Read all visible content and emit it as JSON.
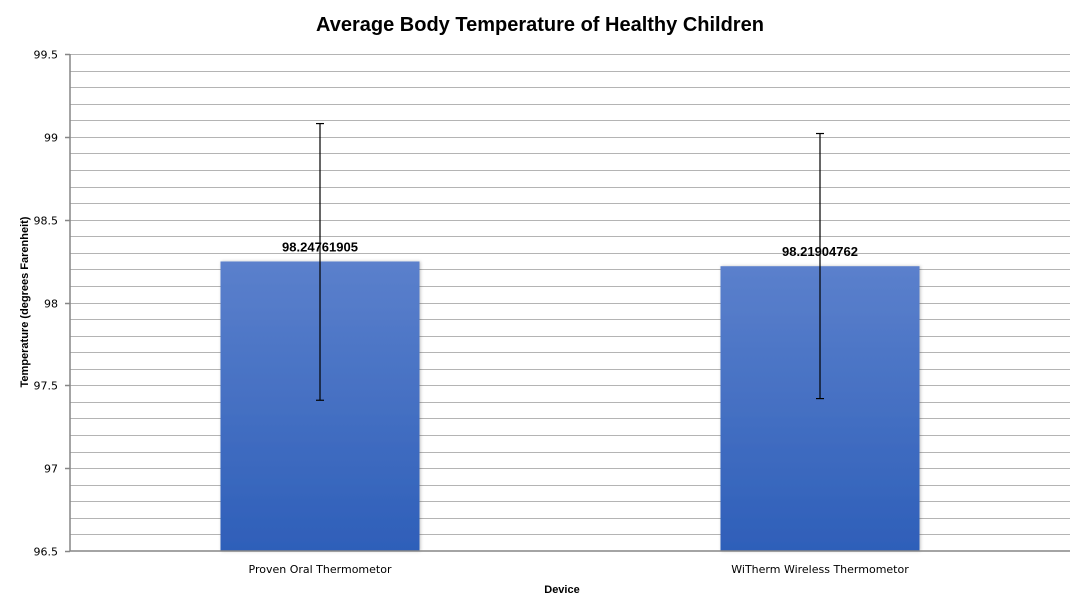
{
  "chart_data": {
    "type": "bar",
    "title": "Average Body Temperature of Healthy Children",
    "xlabel": "Device",
    "ylabel": "Temperature (degrees Farenheit)",
    "categories": [
      "Proven Oral Thermometor",
      "WiTherm Wireless Thermometor"
    ],
    "values": [
      98.24761905,
      98.21904762
    ],
    "data_labels": [
      "98.24761905",
      "98.21904762"
    ],
    "error_bars": [
      {
        "upper": 99.08,
        "lower": 97.41
      },
      {
        "upper": 99.02,
        "lower": 97.42
      }
    ],
    "ylim": [
      96.5,
      99.5
    ],
    "major_ticks": [
      96.5,
      97,
      97.5,
      98,
      98.5,
      99,
      99.5
    ],
    "tick_labels": [
      "96.5",
      "97",
      "97.5",
      "98",
      "98.5",
      "99",
      "99.5"
    ],
    "minor_gridline_step": 0.1,
    "grid": true,
    "legend": "none",
    "bar_color_top": "#5b80cc",
    "bar_color_bottom": "#2e5fb9"
  }
}
